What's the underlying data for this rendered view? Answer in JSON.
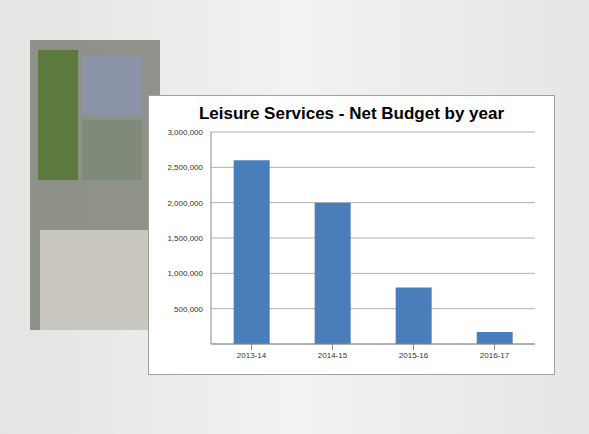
{
  "chart_data": {
    "type": "bar",
    "title": "Leisure Services - Net Budget by year",
    "categories": [
      "2013-14",
      "2014-15",
      "2015-16",
      "2016-17"
    ],
    "values": [
      2600000,
      2000000,
      800000,
      170000
    ],
    "color": "#4a7ebb",
    "ylim": [
      0,
      3000000
    ],
    "yticks": [
      {
        "value": 500000,
        "label": "500,000"
      },
      {
        "value": 1000000,
        "label": "1,000,000"
      },
      {
        "value": 1500000,
        "label": "1,500,000"
      },
      {
        "value": 2000000,
        "label": "2,000,000"
      },
      {
        "value": 2500000,
        "label": "2,500,000"
      },
      {
        "value": 3000000,
        "label": "3,000,000"
      }
    ],
    "grid": true
  }
}
